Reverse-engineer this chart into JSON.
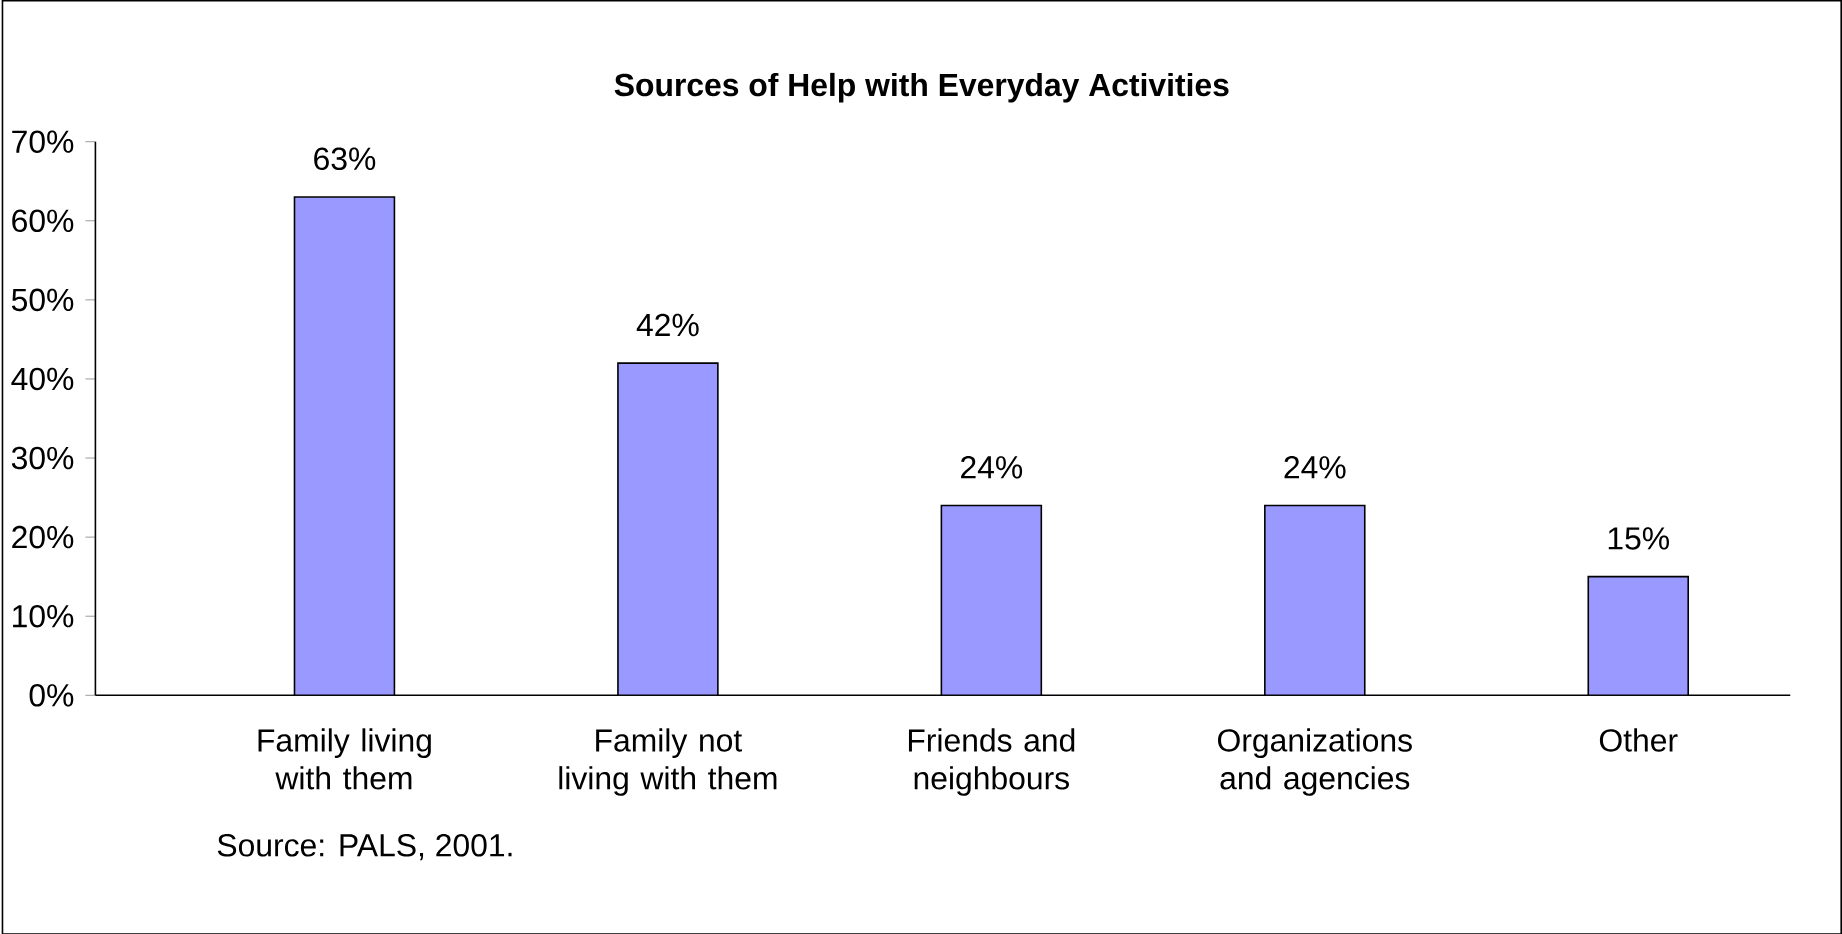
{
  "chart_data": {
    "type": "bar",
    "title": "Sources of Help with Everyday Activities",
    "categories": [
      "Family living with them",
      "Family not living with them",
      "Friends and neighbours",
      "Organizations and agencies",
      "Other"
    ],
    "values": [
      63,
      42,
      24,
      24,
      15
    ],
    "value_labels": [
      "63%",
      "42%",
      "24%",
      "24%",
      "15%"
    ],
    "color": "#9999ff",
    "ylim": [
      0,
      70
    ],
    "yticks": [
      {
        "value": 0,
        "label": "0%"
      },
      {
        "value": 10,
        "label": "10%"
      },
      {
        "value": 20,
        "label": "20%"
      },
      {
        "value": 30,
        "label": "30%"
      },
      {
        "value": 40,
        "label": "40%"
      },
      {
        "value": 50,
        "label": "50%"
      },
      {
        "value": 60,
        "label": "60%"
      },
      {
        "value": 70,
        "label": "70%"
      }
    ],
    "grid": false,
    "annotations": [
      "Source: PALS, 2001."
    ]
  }
}
